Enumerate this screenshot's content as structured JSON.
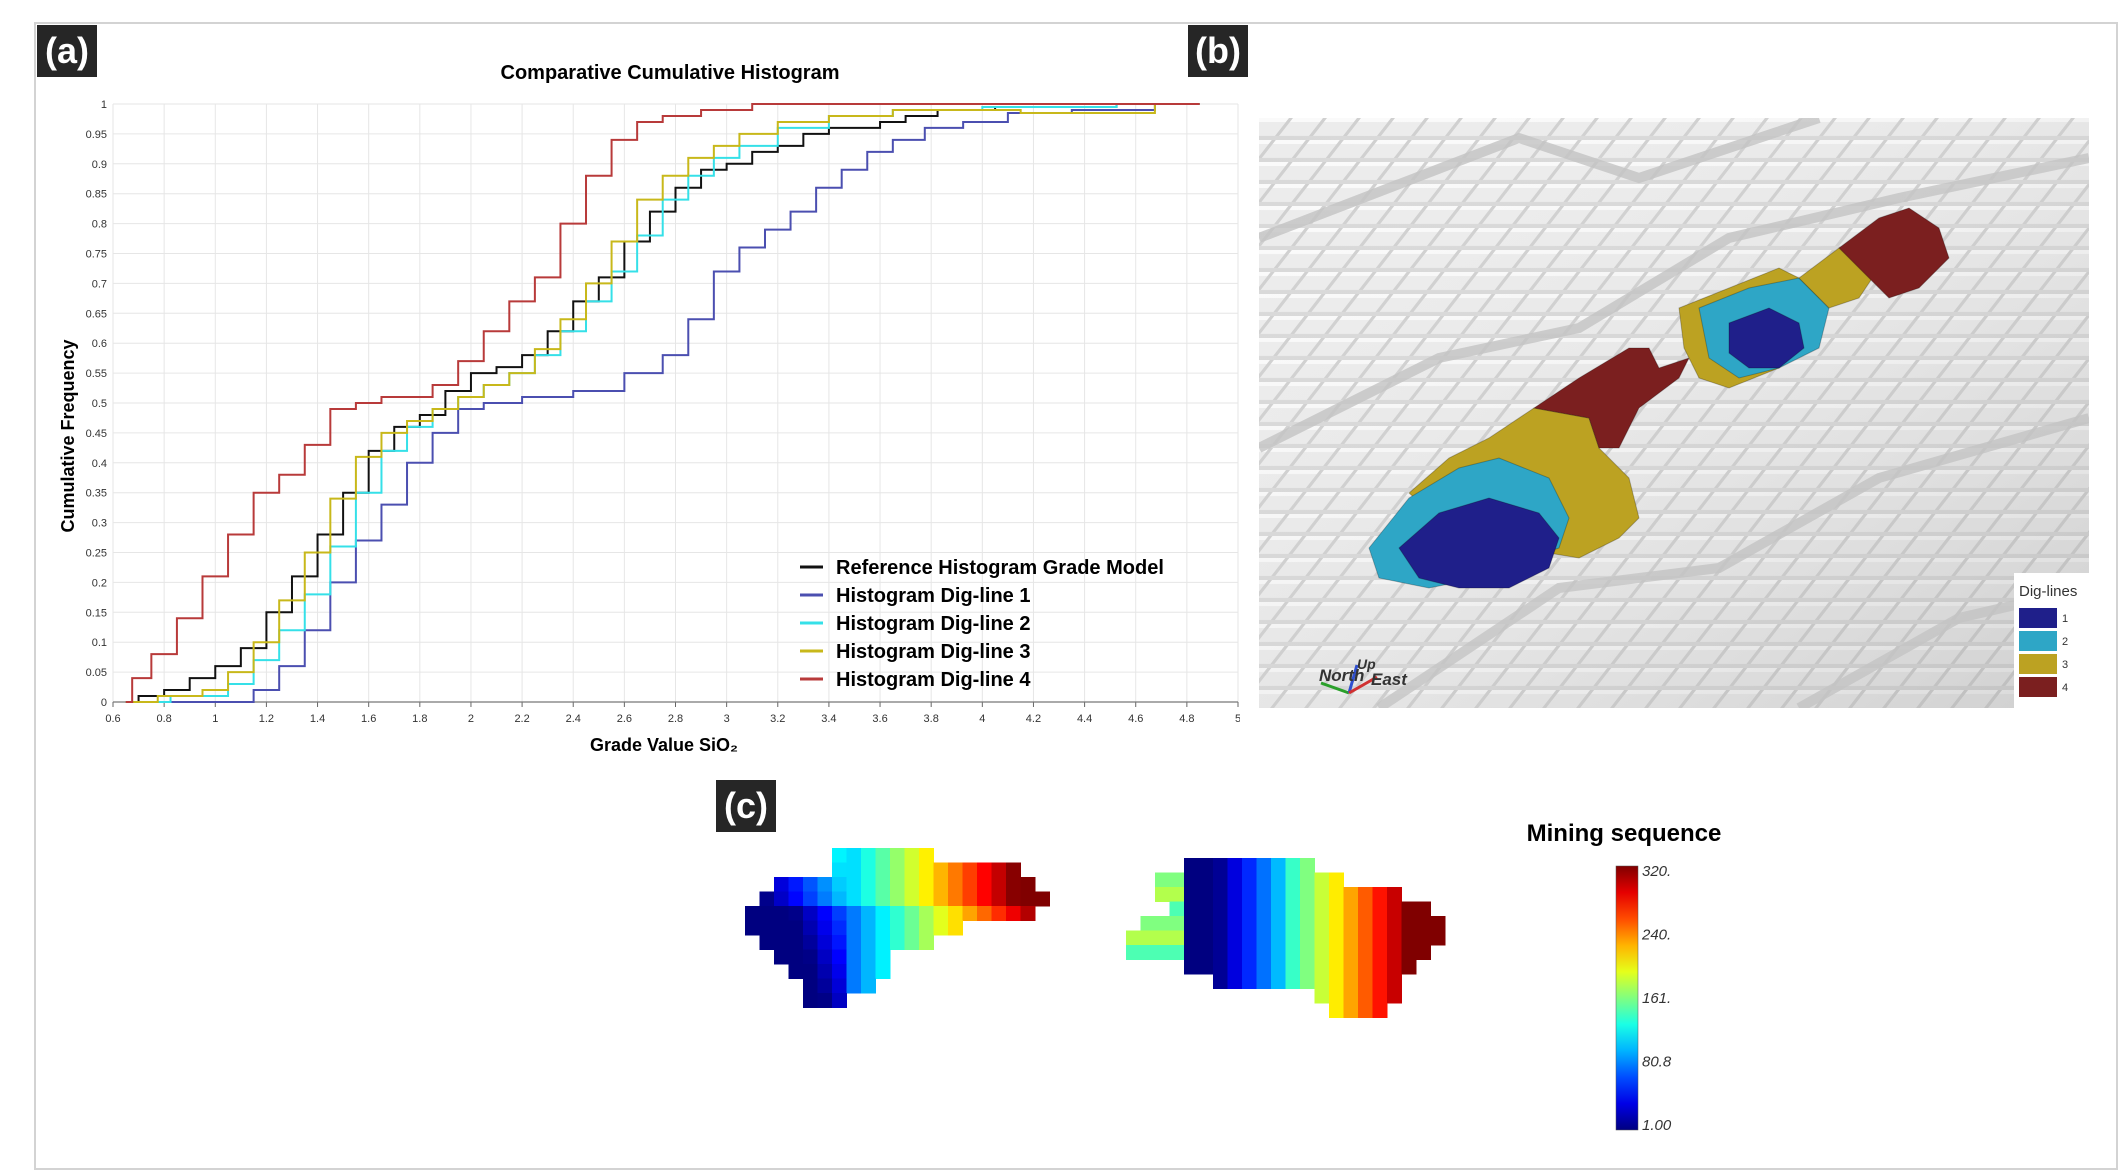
{
  "panels": {
    "a_label": "(a)",
    "b_label": "(b)",
    "c_label": "(c)"
  },
  "chart_data": [
    {
      "type": "line",
      "title": "Comparative Cumulative Histogram",
      "xlabel": "Grade Value SiO₂",
      "ylabel": "Cumulative Frequency",
      "xlim": [
        0.6,
        5
      ],
      "ylim": [
        0,
        1
      ],
      "grid": true,
      "legend_position": "bottom-right",
      "x_ticks": [
        "0.6",
        "0.8",
        "1",
        "1.2",
        "1.4",
        "1.6",
        "1.8",
        "2",
        "2.2",
        "2.4",
        "2.6",
        "2.8",
        "3",
        "3.2",
        "3.4",
        "3.6",
        "3.8",
        "4",
        "4.2",
        "4.4",
        "4.6",
        "4.8",
        "5"
      ],
      "y_ticks": [
        "0",
        "0.05",
        "0.1",
        "0.15",
        "0.2",
        "0.25",
        "0.3",
        "0.35",
        "0.4",
        "0.45",
        "0.5",
        "0.55",
        "0.6",
        "0.65",
        "0.7",
        "0.75",
        "0.8",
        "0.85",
        "0.9",
        "0.95",
        "1"
      ],
      "series": [
        {
          "name": "Reference Histogram Grade Model",
          "color": "#111111",
          "points": [
            [
              0.65,
              0
            ],
            [
              0.75,
              0.01
            ],
            [
              0.85,
              0.02
            ],
            [
              0.95,
              0.04
            ],
            [
              1.05,
              0.06
            ],
            [
              1.15,
              0.09
            ],
            [
              1.25,
              0.15
            ],
            [
              1.35,
              0.21
            ],
            [
              1.45,
              0.28
            ],
            [
              1.55,
              0.35
            ],
            [
              1.65,
              0.42
            ],
            [
              1.75,
              0.46
            ],
            [
              1.85,
              0.48
            ],
            [
              1.95,
              0.52
            ],
            [
              2.05,
              0.55
            ],
            [
              2.15,
              0.56
            ],
            [
              2.25,
              0.58
            ],
            [
              2.35,
              0.62
            ],
            [
              2.45,
              0.67
            ],
            [
              2.55,
              0.71
            ],
            [
              2.65,
              0.77
            ],
            [
              2.75,
              0.82
            ],
            [
              2.85,
              0.86
            ],
            [
              2.95,
              0.89
            ],
            [
              3.05,
              0.9
            ],
            [
              3.15,
              0.92
            ],
            [
              3.25,
              0.93
            ],
            [
              3.35,
              0.95
            ],
            [
              3.45,
              0.96
            ],
            [
              3.55,
              0.96
            ],
            [
              3.65,
              0.97
            ],
            [
              3.75,
              0.98
            ],
            [
              3.9,
              0.99
            ],
            [
              4.2,
              0.995
            ],
            [
              4.85,
              1
            ]
          ]
        },
        {
          "name": "Histogram Dig-line 1",
          "color": "#4b4fb0",
          "points": [
            [
              0.65,
              0
            ],
            [
              1.1,
              0
            ],
            [
              1.2,
              0.02
            ],
            [
              1.3,
              0.06
            ],
            [
              1.4,
              0.12
            ],
            [
              1.5,
              0.2
            ],
            [
              1.6,
              0.27
            ],
            [
              1.7,
              0.33
            ],
            [
              1.8,
              0.4
            ],
            [
              1.9,
              0.45
            ],
            [
              2.0,
              0.49
            ],
            [
              2.1,
              0.5
            ],
            [
              2.3,
              0.51
            ],
            [
              2.5,
              0.52
            ],
            [
              2.7,
              0.55
            ],
            [
              2.8,
              0.58
            ],
            [
              2.9,
              0.64
            ],
            [
              3.0,
              0.72
            ],
            [
              3.1,
              0.76
            ],
            [
              3.2,
              0.79
            ],
            [
              3.3,
              0.82
            ],
            [
              3.4,
              0.86
            ],
            [
              3.5,
              0.89
            ],
            [
              3.6,
              0.92
            ],
            [
              3.7,
              0.94
            ],
            [
              3.85,
              0.96
            ],
            [
              4.0,
              0.97
            ],
            [
              4.2,
              0.985
            ],
            [
              4.5,
              0.99
            ],
            [
              4.85,
              1
            ]
          ]
        },
        {
          "name": "Histogram Dig-line 2",
          "color": "#35e0e8",
          "points": [
            [
              0.65,
              0
            ],
            [
              1.0,
              0.01
            ],
            [
              1.1,
              0.03
            ],
            [
              1.2,
              0.07
            ],
            [
              1.3,
              0.12
            ],
            [
              1.4,
              0.18
            ],
            [
              1.5,
              0.26
            ],
            [
              1.6,
              0.35
            ],
            [
              1.7,
              0.42
            ],
            [
              1.8,
              0.46
            ],
            [
              1.9,
              0.49
            ],
            [
              2.0,
              0.51
            ],
            [
              2.1,
              0.53
            ],
            [
              2.2,
              0.55
            ],
            [
              2.3,
              0.58
            ],
            [
              2.4,
              0.62
            ],
            [
              2.5,
              0.67
            ],
            [
              2.6,
              0.72
            ],
            [
              2.7,
              0.78
            ],
            [
              2.8,
              0.84
            ],
            [
              2.9,
              0.88
            ],
            [
              3.0,
              0.91
            ],
            [
              3.1,
              0.93
            ],
            [
              3.3,
              0.96
            ],
            [
              3.5,
              0.98
            ],
            [
              3.8,
              0.99
            ],
            [
              4.2,
              0.995
            ],
            [
              4.85,
              1
            ]
          ]
        },
        {
          "name": "Histogram Dig-line 3",
          "color": "#c8b81a",
          "points": [
            [
              0.65,
              0
            ],
            [
              0.9,
              0.01
            ],
            [
              1.0,
              0.02
            ],
            [
              1.1,
              0.05
            ],
            [
              1.2,
              0.1
            ],
            [
              1.3,
              0.17
            ],
            [
              1.4,
              0.25
            ],
            [
              1.5,
              0.34
            ],
            [
              1.6,
              0.41
            ],
            [
              1.7,
              0.45
            ],
            [
              1.8,
              0.47
            ],
            [
              1.9,
              0.49
            ],
            [
              2.0,
              0.51
            ],
            [
              2.1,
              0.53
            ],
            [
              2.2,
              0.55
            ],
            [
              2.3,
              0.59
            ],
            [
              2.4,
              0.64
            ],
            [
              2.5,
              0.7
            ],
            [
              2.6,
              0.77
            ],
            [
              2.7,
              0.84
            ],
            [
              2.8,
              0.88
            ],
            [
              2.9,
              0.91
            ],
            [
              3.0,
              0.93
            ],
            [
              3.1,
              0.95
            ],
            [
              3.3,
              0.97
            ],
            [
              3.5,
              0.98
            ],
            [
              3.8,
              0.99
            ],
            [
              4.5,
              0.985
            ],
            [
              4.85,
              1
            ]
          ]
        },
        {
          "name": "Histogram Dig-line 4",
          "color": "#b83a3a",
          "points": [
            [
              0.65,
              0
            ],
            [
              0.7,
              0.04
            ],
            [
              0.8,
              0.08
            ],
            [
              0.9,
              0.14
            ],
            [
              1.0,
              0.21
            ],
            [
              1.1,
              0.28
            ],
            [
              1.2,
              0.35
            ],
            [
              1.3,
              0.38
            ],
            [
              1.4,
              0.43
            ],
            [
              1.5,
              0.49
            ],
            [
              1.6,
              0.5
            ],
            [
              1.7,
              0.51
            ],
            [
              1.8,
              0.51
            ],
            [
              1.9,
              0.53
            ],
            [
              2.0,
              0.57
            ],
            [
              2.1,
              0.62
            ],
            [
              2.2,
              0.67
            ],
            [
              2.3,
              0.71
            ],
            [
              2.4,
              0.8
            ],
            [
              2.5,
              0.88
            ],
            [
              2.6,
              0.94
            ],
            [
              2.7,
              0.97
            ],
            [
              2.8,
              0.98
            ],
            [
              3.0,
              0.99
            ],
            [
              3.2,
              1.0
            ],
            [
              4.85,
              1.0
            ]
          ]
        }
      ]
    },
    {
      "type": "heatmap",
      "title": "Mining sequence",
      "colorbar_ticks": [
        "320.",
        "240.",
        "161.",
        "80.8",
        "1.00"
      ],
      "range": [
        1,
        320
      ],
      "colormap": "jet"
    }
  ],
  "block_model": {
    "legend_title": "Dig-lines",
    "legend_items": [
      {
        "label": "1",
        "color": "#1f1f8a"
      },
      {
        "label": "2",
        "color": "#2ea6c6"
      },
      {
        "label": "3",
        "color": "#bca222"
      },
      {
        "label": "4",
        "color": "#7b1f1f"
      }
    ],
    "axis_labels": {
      "north": "North",
      "up": "Up",
      "east": "East"
    }
  }
}
